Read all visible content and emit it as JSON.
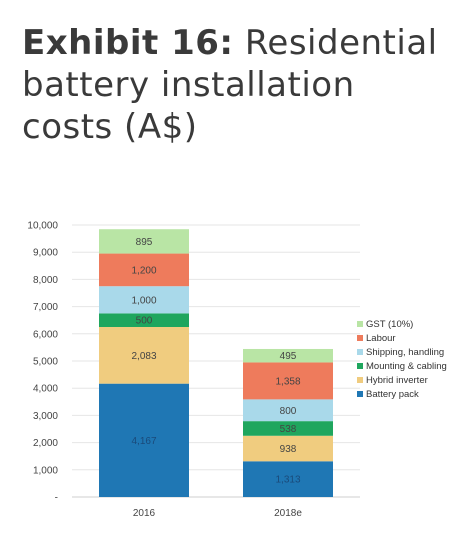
{
  "title": {
    "lead": "Exhibit 16:",
    "rest": "Residential battery installation costs (A$)"
  },
  "chart_data": {
    "type": "bar",
    "stacked": true,
    "categories": [
      "2016",
      "2018e"
    ],
    "ylim": [
      0,
      10000
    ],
    "yticks": [
      "-",
      "1,000",
      "2,000",
      "3,000",
      "4,000",
      "5,000",
      "6,000",
      "7,000",
      "8,000",
      "9,000",
      "10,000"
    ],
    "grid": true,
    "legend_position": "right",
    "series": [
      {
        "name": "Battery pack",
        "color": "#1f77b4",
        "values": [
          4167,
          1313
        ],
        "labels": [
          "4,167",
          "1,313"
        ]
      },
      {
        "name": "Hybrid inverter",
        "color": "#f0cc7f",
        "values": [
          2083,
          938
        ],
        "labels": [
          "2,083",
          "938"
        ]
      },
      {
        "name": "Mounting & cabling",
        "color": "#1fa65e",
        "values": [
          500,
          538
        ],
        "labels": [
          "500",
          "538"
        ]
      },
      {
        "name": "Shipping, handling",
        "color": "#a9d9ea",
        "values": [
          1000,
          800
        ],
        "labels": [
          "1,000",
          "800"
        ]
      },
      {
        "name": "Labour",
        "color": "#ee7b5c",
        "values": [
          1200,
          1358
        ],
        "labels": [
          "1,200",
          "1,358"
        ]
      },
      {
        "name": "GST (10%)",
        "color": "#b9e5a5",
        "values": [
          895,
          495
        ],
        "labels": [
          "895",
          "495"
        ]
      }
    ]
  }
}
